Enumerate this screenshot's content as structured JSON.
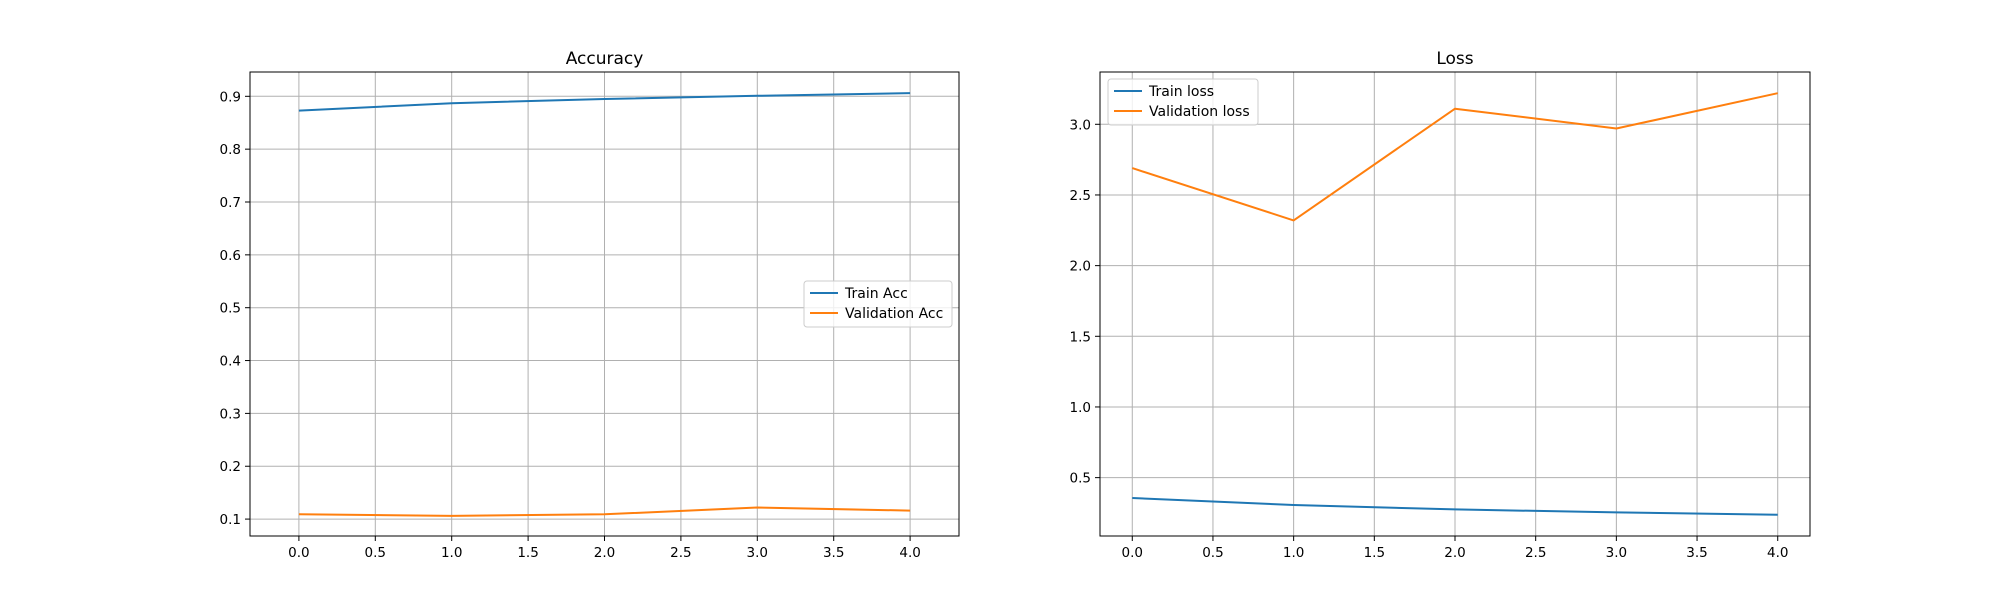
{
  "colors": {
    "series_1": "#1f77b4",
    "series_2": "#ff7f0e",
    "grid": "#b0b0b0",
    "axis": "#000000",
    "legend_border": "#cccccc",
    "background": "#ffffff"
  },
  "chart_data": [
    {
      "type": "line",
      "title": "Accuracy",
      "xlabel": "",
      "ylabel": "",
      "x": [
        0,
        1,
        2,
        3,
        4
      ],
      "series": [
        {
          "name": "Train Acc",
          "values": [
            0.873,
            0.887,
            0.895,
            0.901,
            0.906
          ]
        },
        {
          "name": "Validation Acc",
          "values": [
            0.109,
            0.106,
            0.109,
            0.122,
            0.116
          ]
        }
      ],
      "xlim": [
        -0.32,
        4.32
      ],
      "ylim": [
        0.068,
        0.946
      ],
      "xticks": [
        0.0,
        0.5,
        1.0,
        1.5,
        2.0,
        2.5,
        3.0,
        3.5,
        4.0
      ],
      "xtick_labels": [
        "0.0",
        "0.5",
        "1.0",
        "1.5",
        "2.0",
        "2.5",
        "3.0",
        "3.5",
        "4.0"
      ],
      "yticks": [
        0.1,
        0.2,
        0.3,
        0.4,
        0.5,
        0.6,
        0.7,
        0.8,
        0.9
      ],
      "ytick_labels": [
        "0.1",
        "0.2",
        "0.3",
        "0.4",
        "0.5",
        "0.6",
        "0.7",
        "0.8",
        "0.9"
      ],
      "grid": true,
      "legend_position": "center-right"
    },
    {
      "type": "line",
      "title": "Loss",
      "xlabel": "",
      "ylabel": "",
      "x": [
        0,
        1,
        2,
        3,
        4
      ],
      "series": [
        {
          "name": "Train loss",
          "values": [
            0.356,
            0.306,
            0.275,
            0.254,
            0.237
          ]
        },
        {
          "name": "Validation loss",
          "values": [
            2.69,
            2.32,
            3.11,
            2.97,
            3.22
          ]
        }
      ],
      "xlim": [
        -0.2,
        4.2
      ],
      "ylim": [
        0.087,
        3.37
      ],
      "xticks": [
        0.0,
        0.5,
        1.0,
        1.5,
        2.0,
        2.5,
        3.0,
        3.5,
        4.0
      ],
      "xtick_labels": [
        "0.0",
        "0.5",
        "1.0",
        "1.5",
        "2.0",
        "2.5",
        "3.0",
        "3.5",
        "4.0"
      ],
      "yticks": [
        0.5,
        1.0,
        1.5,
        2.0,
        2.5,
        3.0
      ],
      "ytick_labels": [
        "0.5",
        "1.0",
        "1.5",
        "2.0",
        "2.5",
        "3.0"
      ],
      "grid": true,
      "legend_position": "top-left"
    }
  ]
}
